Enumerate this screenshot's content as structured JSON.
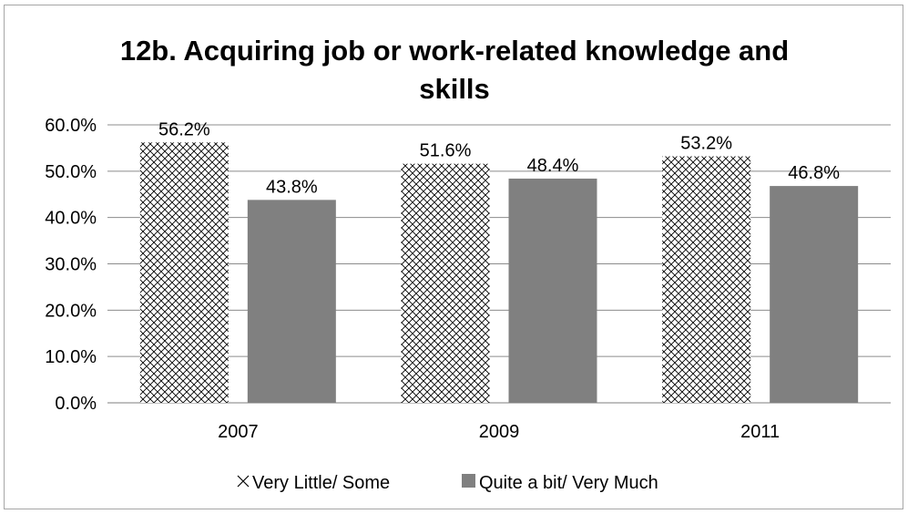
{
  "chart_data": {
    "type": "bar",
    "title_lines": [
      "12b. Acquiring job or work-related knowledge and",
      "skills"
    ],
    "categories": [
      "2007",
      "2009",
      "2011"
    ],
    "series": [
      {
        "name": "Very Little/ Some",
        "values": [
          56.2,
          51.6,
          53.2
        ],
        "pattern": "crosshatch",
        "color": "#000000"
      },
      {
        "name": "Quite a bit/ Very Much",
        "values": [
          43.8,
          48.4,
          46.8
        ],
        "pattern": "solid",
        "color": "#808080"
      }
    ],
    "data_labels": [
      [
        "56.2%",
        "51.6%",
        "53.2%"
      ],
      [
        "43.8%",
        "48.4%",
        "46.8%"
      ]
    ],
    "y_ticks": [
      "0.0%",
      "10.0%",
      "20.0%",
      "30.0%",
      "40.0%",
      "50.0%",
      "60.0%"
    ],
    "ylim": [
      0,
      60
    ],
    "xlabel": "",
    "ylabel": "",
    "grid": true,
    "legend_position": "bottom"
  }
}
